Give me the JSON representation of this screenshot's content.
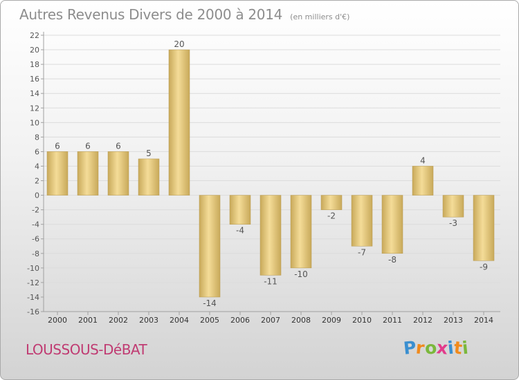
{
  "title": "Autres Revenus Divers de 2000 à 2014",
  "subtitle": "(en milliers d'€)",
  "location": "LOUSSOUS-DéBAT",
  "logo": {
    "text": "Proxiti",
    "letter_colors": [
      "#3a8fd0",
      "#f08a1c",
      "#7bb83c",
      "#e23c8c",
      "#3a8fd0",
      "#f08a1c",
      "#7bb83c"
    ]
  },
  "colors": {
    "bar_light": "#f4dc98",
    "bar_dark": "#c8a95a",
    "axis": "#a0a0a0",
    "grid": "#dcdcdc",
    "text": "#555555"
  },
  "chart_data": {
    "type": "bar",
    "categories": [
      "2000",
      "2001",
      "2002",
      "2003",
      "2004",
      "2005",
      "2006",
      "2007",
      "2008",
      "2009",
      "2010",
      "2011",
      "2012",
      "2013",
      "2014"
    ],
    "values": [
      6,
      6,
      6,
      5,
      20,
      -14,
      -4,
      -11,
      -10,
      -2,
      -7,
      -8,
      4,
      -3,
      -9
    ],
    "ylim": [
      -16,
      22
    ],
    "yticks": [
      22,
      20,
      18,
      16,
      14,
      12,
      10,
      8,
      6,
      4,
      2,
      0,
      -2,
      -4,
      -6,
      -8,
      -10,
      -12,
      -14,
      -16
    ],
    "grid": true
  }
}
